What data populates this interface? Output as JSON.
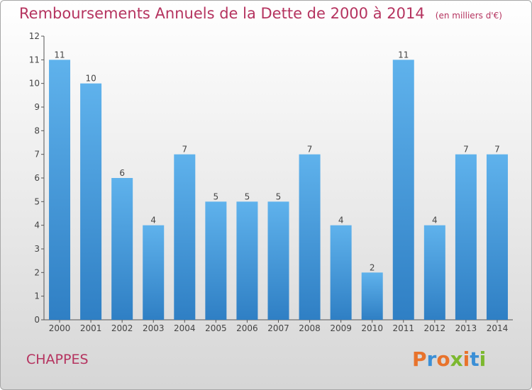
{
  "chart_data": {
    "type": "bar",
    "title": "Remboursements Annuels de la Dette de 2000 à 2014",
    "subtitle": "(en milliers d'€)",
    "xlabel": "",
    "ylabel": "",
    "categories": [
      "2000",
      "2001",
      "2002",
      "2003",
      "2004",
      "2005",
      "2006",
      "2007",
      "2008",
      "2009",
      "2010",
      "2011",
      "2012",
      "2013",
      "2014"
    ],
    "values": [
      11,
      10,
      6,
      4,
      7,
      5,
      5,
      5,
      7,
      4,
      2,
      11,
      4,
      7,
      7
    ],
    "ylim": [
      0,
      12
    ],
    "yticks": [
      0,
      1,
      2,
      3,
      4,
      5,
      6,
      7,
      8,
      9,
      10,
      11,
      12
    ],
    "grid": false,
    "bar_color": "#4f9fde",
    "title_color": "#b5335f"
  },
  "footer": {
    "city": "CHAPPES",
    "logo_text": "Proxiti",
    "logo_colors": [
      "#e8732c",
      "#3b8fd6",
      "#e8732c",
      "#7cb82f",
      "#e8732c",
      "#3b8fd6",
      "#7cb82f"
    ]
  }
}
